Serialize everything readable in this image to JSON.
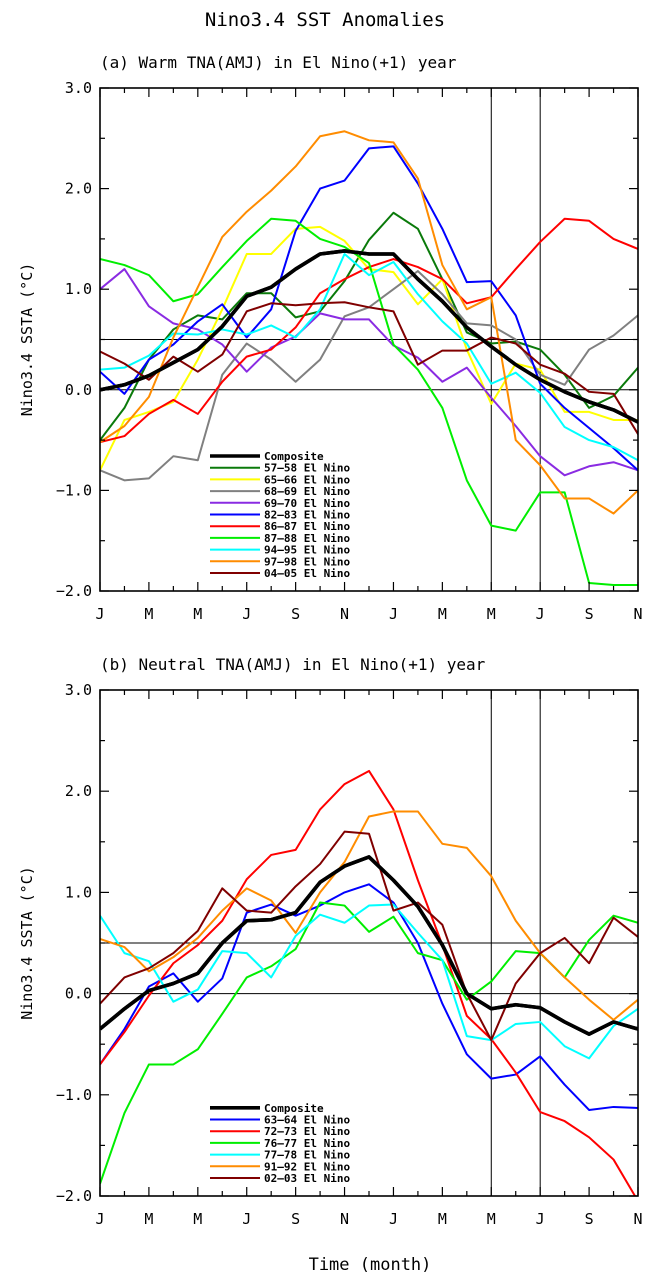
{
  "figure": {
    "title": "Nino3.4 SST Anomalies",
    "xlabel": "Time (month)"
  },
  "chart_data": [
    {
      "type": "line",
      "title": "(a) Warm TNA(AMJ) in El Nino(+1) year",
      "ylabel": "Nino3.4 SSTA (°C)",
      "xlabel": "Time (month)",
      "x_tick_labels": [
        "J",
        "M",
        "M",
        "J",
        "S",
        "N",
        "J",
        "M",
        "M",
        "J",
        "S",
        "N"
      ],
      "y_tick_labels": [
        "3.0",
        "2.0",
        "1.0",
        "0.0",
        "−1.0",
        "−2.0"
      ],
      "ylim": [
        -2.0,
        3.0
      ],
      "xlim": [
        0,
        22
      ],
      "reference_lines": {
        "horizontal": [
          0.0,
          0.5
        ],
        "vertical_at_tick": [
          8,
          9
        ]
      },
      "legend_position": "lower-left",
      "series": [
        {
          "name": "Composite",
          "color": "#000000",
          "bold": true,
          "values": [
            0.0,
            0.05,
            0.14,
            0.27,
            0.4,
            0.63,
            0.93,
            1.02,
            1.2,
            1.35,
            1.38,
            1.35,
            1.35,
            1.1,
            0.88,
            0.62,
            0.43,
            0.25,
            0.1,
            -0.02,
            -0.12,
            -0.2,
            -0.32,
            -0.42
          ]
        },
        {
          "name": "57–58 El Nino",
          "color": "#0a7a0a",
          "values": [
            -0.5,
            -0.18,
            0.3,
            0.6,
            0.74,
            0.7,
            0.96,
            0.96,
            0.72,
            0.78,
            1.08,
            1.49,
            1.76,
            1.6,
            1.1,
            0.57,
            0.46,
            0.48,
            0.4,
            0.15,
            -0.18,
            -0.06,
            0.22,
            0.05
          ]
        },
        {
          "name": "65–66 El Nino",
          "color": "#ffff00",
          "values": [
            -0.8,
            -0.3,
            -0.22,
            -0.12,
            0.3,
            0.8,
            1.35,
            1.35,
            1.6,
            1.62,
            1.48,
            1.2,
            1.17,
            0.85,
            1.1,
            0.4,
            -0.14,
            0.26,
            0.2,
            -0.22,
            -0.22,
            -0.3,
            -0.3,
            -0.3
          ]
        },
        {
          "name": "68–69 El Nino",
          "color": "#808080",
          "values": [
            -0.8,
            -0.9,
            -0.88,
            -0.66,
            -0.7,
            0.15,
            0.46,
            0.3,
            0.08,
            0.3,
            0.73,
            0.82,
            1.0,
            1.18,
            0.95,
            0.66,
            0.64,
            0.5,
            0.15,
            0.05,
            0.4,
            0.54,
            0.74,
            0.7
          ]
        },
        {
          "name": "69–70 El Nino",
          "color": "#8a2be2",
          "values": [
            1.0,
            1.2,
            0.83,
            0.66,
            0.6,
            0.45,
            0.18,
            0.42,
            0.53,
            0.76,
            0.7,
            0.7,
            0.44,
            0.32,
            0.08,
            0.22,
            -0.08,
            -0.36,
            -0.66,
            -0.85,
            -0.76,
            -0.72,
            -0.8,
            -0.8
          ]
        },
        {
          "name": "82–83 El Nino",
          "color": "#0000ff",
          "values": [
            0.18,
            -0.04,
            0.3,
            0.45,
            0.68,
            0.85,
            0.52,
            0.8,
            1.58,
            2.0,
            2.08,
            2.4,
            2.42,
            2.05,
            1.6,
            1.07,
            1.08,
            0.74,
            0.06,
            -0.18,
            -0.38,
            -0.58,
            -0.8,
            -1.02
          ]
        },
        {
          "name": "86–87 El Nino",
          "color": "#ff0000",
          "values": [
            -0.52,
            -0.46,
            -0.24,
            -0.1,
            -0.24,
            0.08,
            0.33,
            0.4,
            0.62,
            0.96,
            1.1,
            1.22,
            1.3,
            1.22,
            1.1,
            0.86,
            0.92,
            1.2,
            1.47,
            1.7,
            1.68,
            1.5,
            1.4,
            1.4
          ]
        },
        {
          "name": "87–88 El Nino",
          "color": "#00ee00",
          "values": [
            1.3,
            1.24,
            1.14,
            0.88,
            0.95,
            1.22,
            1.48,
            1.7,
            1.68,
            1.5,
            1.42,
            1.26,
            0.45,
            0.2,
            -0.18,
            -0.9,
            -1.35,
            -1.4,
            -1.02,
            -1.02,
            -1.92,
            -1.94,
            -1.94,
            -1.94
          ]
        },
        {
          "name": "94–95 El Nino",
          "color": "#00ffff",
          "values": [
            0.2,
            0.22,
            0.34,
            0.56,
            0.55,
            0.6,
            0.55,
            0.64,
            0.52,
            0.8,
            1.35,
            1.14,
            1.27,
            0.95,
            0.68,
            0.46,
            0.06,
            0.17,
            -0.03,
            -0.37,
            -0.5,
            -0.57,
            -0.7,
            -0.82
          ]
        },
        {
          "name": "97–98 El Nino",
          "color": "#ff8c00",
          "values": [
            -0.52,
            -0.36,
            -0.07,
            0.52,
            1.02,
            1.52,
            1.77,
            1.98,
            2.22,
            2.52,
            2.57,
            2.48,
            2.46,
            2.1,
            1.24,
            0.8,
            0.92,
            -0.5,
            -0.75,
            -1.08,
            -1.08,
            -1.23,
            -1.0,
            -1.0
          ]
        },
        {
          "name": "04–05 El Nino",
          "color": "#800000",
          "values": [
            0.38,
            0.26,
            0.1,
            0.33,
            0.18,
            0.35,
            0.78,
            0.86,
            0.84,
            0.86,
            0.87,
            0.82,
            0.78,
            0.25,
            0.39,
            0.39,
            0.52,
            0.46,
            0.25,
            0.16,
            -0.02,
            -0.04,
            -0.44,
            -0.44
          ]
        }
      ]
    },
    {
      "type": "line",
      "title": "(b) Neutral TNA(AMJ) in El Nino(+1) year",
      "ylabel": "Nino3.4 SSTA (°C)",
      "xlabel": "Time (month)",
      "x_tick_labels": [
        "J",
        "M",
        "M",
        "J",
        "S",
        "N",
        "J",
        "M",
        "M",
        "J",
        "S",
        "N"
      ],
      "y_tick_labels": [
        "3.0",
        "2.0",
        "1.0",
        "0.0",
        "−1.0",
        "−2.0"
      ],
      "ylim": [
        -2.0,
        3.0
      ],
      "xlim": [
        0,
        22
      ],
      "reference_lines": {
        "horizontal": [
          0.0,
          0.5
        ],
        "vertical_at_tick": [
          8,
          9
        ]
      },
      "legend_position": "lower-left",
      "series": [
        {
          "name": "Composite",
          "color": "#000000",
          "bold": true,
          "values": [
            -0.35,
            -0.15,
            0.03,
            0.1,
            0.2,
            0.5,
            0.72,
            0.73,
            0.8,
            1.1,
            1.26,
            1.35,
            1.12,
            0.86,
            0.48,
            0.0,
            -0.15,
            -0.11,
            -0.14,
            -0.28,
            -0.4,
            -0.28,
            -0.35,
            -0.35
          ]
        },
        {
          "name": "63–64 El Nino",
          "color": "#0000ff",
          "values": [
            -0.7,
            -0.35,
            0.07,
            0.2,
            -0.08,
            0.15,
            0.8,
            0.88,
            0.77,
            0.87,
            1.0,
            1.08,
            0.9,
            0.5,
            -0.1,
            -0.6,
            -0.84,
            -0.8,
            -0.62,
            -0.9,
            -1.15,
            -1.12,
            -1.13,
            -1.13
          ]
        },
        {
          "name": "72–73 El Nino",
          "color": "#ff0000",
          "values": [
            -0.7,
            -0.38,
            -0.02,
            0.3,
            0.48,
            0.72,
            1.13,
            1.37,
            1.42,
            1.82,
            2.07,
            2.2,
            1.82,
            1.12,
            0.48,
            -0.22,
            -0.45,
            -0.78,
            -1.17,
            -1.26,
            -1.42,
            -1.64,
            -2.05,
            -2.05
          ]
        },
        {
          "name": "76–77 El Nino",
          "color": "#00ee00",
          "values": [
            -1.88,
            -1.18,
            -0.7,
            -0.7,
            -0.55,
            -0.2,
            0.16,
            0.27,
            0.44,
            0.9,
            0.87,
            0.61,
            0.76,
            0.4,
            0.33,
            -0.06,
            0.12,
            0.42,
            0.4,
            0.16,
            0.53,
            0.77,
            0.7,
            0.7
          ]
        },
        {
          "name": "77–78 El Nino",
          "color": "#00ffff",
          "values": [
            0.77,
            0.4,
            0.32,
            -0.08,
            0.04,
            0.42,
            0.4,
            0.16,
            0.57,
            0.78,
            0.7,
            0.87,
            0.88,
            0.6,
            0.33,
            -0.42,
            -0.46,
            -0.3,
            -0.28,
            -0.52,
            -0.64,
            -0.32,
            -0.15,
            -0.15
          ]
        },
        {
          "name": "91–92 El Nino",
          "color": "#ff8c00",
          "values": [
            0.54,
            0.46,
            0.22,
            0.36,
            0.55,
            0.82,
            1.04,
            0.92,
            0.6,
            1.0,
            1.3,
            1.75,
            1.8,
            1.8,
            1.48,
            1.44,
            1.16,
            0.72,
            0.4,
            0.16,
            -0.06,
            -0.26,
            -0.06,
            -0.06
          ]
        },
        {
          "name": "02–03 El Nino",
          "color": "#800000",
          "values": [
            -0.1,
            0.16,
            0.25,
            0.4,
            0.62,
            1.04,
            0.82,
            0.8,
            1.06,
            1.28,
            1.6,
            1.58,
            0.82,
            0.9,
            0.68,
            0.0,
            -0.46,
            0.1,
            0.4,
            0.55,
            0.3,
            0.75,
            0.56,
            0.56
          ]
        }
      ]
    }
  ]
}
